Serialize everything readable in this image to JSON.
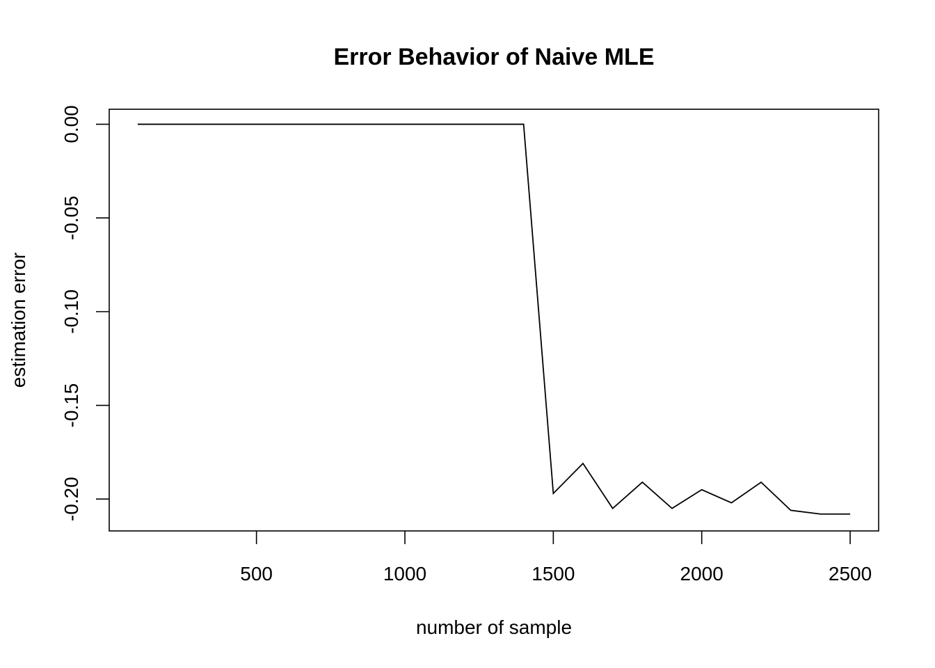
{
  "chart_data": {
    "type": "line",
    "title": "Error Behavior of Naive MLE",
    "xlabel": "number of sample",
    "ylabel": "estimation error",
    "x_ticks": [
      500,
      1000,
      1500,
      2000,
      2500
    ],
    "x_tick_labels": [
      "500",
      "1000",
      "1500",
      "2000",
      "2500"
    ],
    "y_ticks": [
      0.0,
      -0.05,
      -0.1,
      -0.15,
      -0.2
    ],
    "y_tick_labels": [
      "0.00",
      "-0.05",
      "-0.10",
      "-0.15",
      "-0.20"
    ],
    "xlim": [
      4,
      2596
    ],
    "ylim": [
      -0.217,
      0.008
    ],
    "grid": false,
    "series": [
      {
        "x": [
          100,
          200,
          300,
          400,
          500,
          600,
          700,
          800,
          900,
          1000,
          1100,
          1200,
          1300,
          1400,
          1500,
          1600,
          1700,
          1800,
          1900,
          2000,
          2100,
          2200,
          2300,
          2400,
          2500
        ],
        "y": [
          0.0,
          0.0,
          0.0,
          0.0,
          0.0,
          0.0,
          0.0,
          0.0,
          0.0,
          0.0,
          0.0,
          0.0,
          0.0,
          0.0,
          -0.197,
          -0.181,
          -0.205,
          -0.191,
          -0.205,
          -0.195,
          -0.202,
          -0.191,
          -0.206,
          -0.208,
          -0.208
        ],
        "color": "#000000"
      }
    ]
  }
}
